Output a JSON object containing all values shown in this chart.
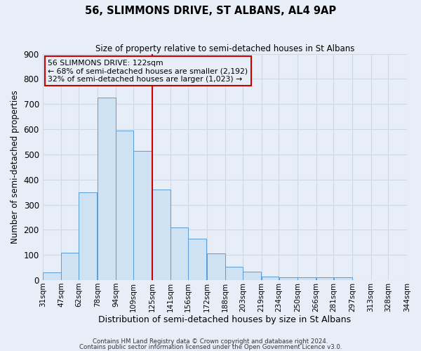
{
  "title": "56, SLIMMONS DRIVE, ST ALBANS, AL4 9AP",
  "subtitle": "Size of property relative to semi-detached houses in St Albans",
  "xlabel": "Distribution of semi-detached houses by size in St Albans",
  "ylabel": "Number of semi-detached properties",
  "bin_edges": [
    31,
    47,
    62,
    78,
    94,
    109,
    125,
    141,
    156,
    172,
    188,
    203,
    219,
    234,
    250,
    266,
    281,
    297,
    313,
    328,
    344
  ],
  "bin_labels": [
    "31sqm",
    "47sqm",
    "62sqm",
    "78sqm",
    "94sqm",
    "109sqm",
    "125sqm",
    "141sqm",
    "156sqm",
    "172sqm",
    "188sqm",
    "203sqm",
    "219sqm",
    "234sqm",
    "250sqm",
    "266sqm",
    "281sqm",
    "297sqm",
    "313sqm",
    "328sqm",
    "344sqm"
  ],
  "counts": [
    30,
    108,
    350,
    725,
    595,
    515,
    360,
    210,
    165,
    105,
    52,
    35,
    15,
    12,
    12,
    12,
    12,
    0,
    0,
    0
  ],
  "bar_facecolor": "#cfe2f3",
  "bar_edgecolor": "#5b9bd5",
  "vline_x": 125,
  "vline_color": "#cc0000",
  "annotation_title": "56 SLIMMONS DRIVE: 122sqm",
  "annotation_line1": "← 68% of semi-detached houses are smaller (2,192)",
  "annotation_line2": "32% of semi-detached houses are larger (1,023) →",
  "annotation_box_edgecolor": "#cc0000",
  "ylim": [
    0,
    900
  ],
  "yticks": [
    0,
    100,
    200,
    300,
    400,
    500,
    600,
    700,
    800,
    900
  ],
  "grid_color": "#d0d8e8",
  "bg_color": "#e8eef8",
  "footer1": "Contains HM Land Registry data © Crown copyright and database right 2024.",
  "footer2": "Contains public sector information licensed under the Open Government Licence v3.0."
}
